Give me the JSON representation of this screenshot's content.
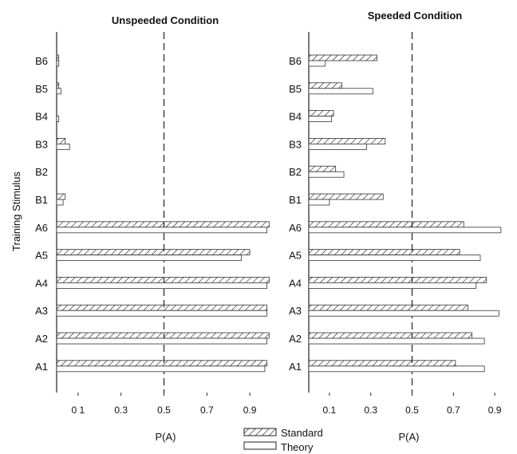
{
  "chart_data": [
    {
      "type": "bar",
      "title": "Unspeeded Condition",
      "orientation": "horizontal",
      "ylabel": "Training Stimulus",
      "xlabel": "P(A)",
      "xlim": [
        0,
        1
      ],
      "xticks": [
        "0 1",
        "0.3",
        "0.5",
        "0.7",
        "0.9"
      ],
      "xtick_values": [
        0.1,
        0.3,
        0.5,
        0.7,
        0.9
      ],
      "reference_line": 0.5,
      "categories": [
        "B6",
        "B5",
        "B4",
        "B3",
        "B2",
        "B1",
        "A6",
        "A5",
        "A4",
        "A3",
        "A2",
        "A1"
      ],
      "series": [
        {
          "name": "Standard",
          "values": [
            0.01,
            0.01,
            0.0,
            0.04,
            0.0,
            0.04,
            0.99,
            0.9,
            0.99,
            0.98,
            0.99,
            0.98
          ]
        },
        {
          "name": "Theory",
          "values": [
            0.01,
            0.02,
            0.01,
            0.06,
            0.0,
            0.03,
            0.98,
            0.86,
            0.98,
            0.98,
            0.98,
            0.97
          ]
        }
      ]
    },
    {
      "type": "bar",
      "title": "Speeded Condition",
      "orientation": "horizontal",
      "ylabel": "",
      "xlabel": "P(A)",
      "xlim": [
        0,
        1
      ],
      "xticks": [
        "0.1",
        "0.3",
        "0.5",
        "0.7",
        "0.9"
      ],
      "xtick_values": [
        0.1,
        0.3,
        0.5,
        0.7,
        0.9
      ],
      "reference_line": 0.5,
      "categories": [
        "B6",
        "B5",
        "B4",
        "B3",
        "B2",
        "B1",
        "A6",
        "A5",
        "A4",
        "A3",
        "A2",
        "A1"
      ],
      "series": [
        {
          "name": "Standard",
          "values": [
            0.33,
            0.16,
            0.12,
            0.37,
            0.13,
            0.36,
            0.75,
            0.73,
            0.86,
            0.77,
            0.79,
            0.71
          ]
        },
        {
          "name": "Theory",
          "values": [
            0.08,
            0.31,
            0.11,
            0.28,
            0.17,
            0.1,
            0.93,
            0.83,
            0.81,
            0.92,
            0.85,
            0.85
          ]
        }
      ]
    }
  ],
  "legend": {
    "standard": "Standard",
    "theory": "Theory"
  }
}
